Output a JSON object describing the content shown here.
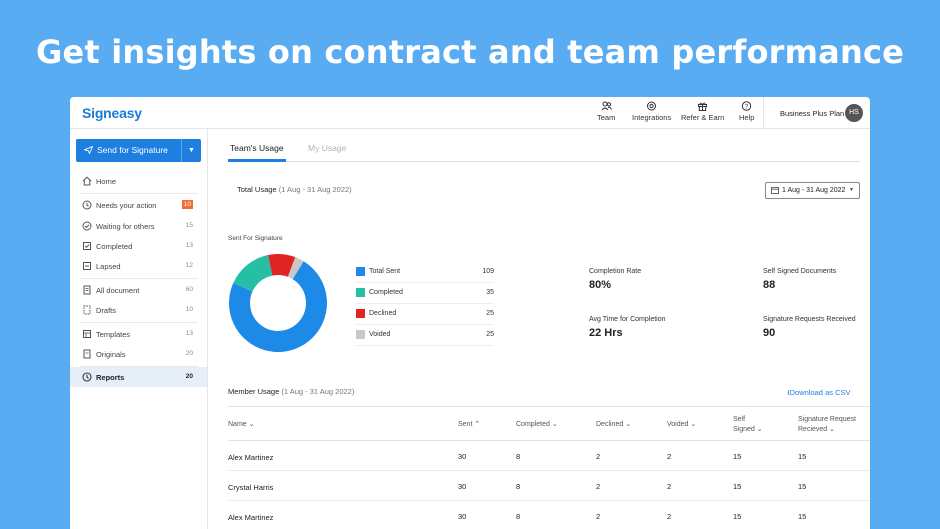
{
  "headline": "Get insights on contract and team performance",
  "app": {
    "logo": "Signeasy"
  },
  "topnav": [
    {
      "label": "Team",
      "icon": "team-icon"
    },
    {
      "label": "Integrations",
      "icon": "integrations-icon"
    },
    {
      "label": "Refer & Earn",
      "icon": "gift-icon"
    },
    {
      "label": "Help",
      "icon": "help-icon"
    }
  ],
  "plan": {
    "label": "Business Plus Plan",
    "avatar": "HS"
  },
  "sidebar": {
    "send_label": "Send for Signature",
    "items": [
      {
        "label": "Home",
        "count": "",
        "icon": "home-icon"
      },
      {
        "label": "Needs your action",
        "count": "10",
        "icon": "needs-action-icon"
      },
      {
        "label": "Waiting for others",
        "count": "15",
        "icon": "waiting-icon"
      },
      {
        "label": "Completed",
        "count": "13",
        "icon": "completed-icon"
      },
      {
        "label": "Lapsed",
        "count": "12",
        "icon": "lapsed-icon"
      },
      {
        "label": "All document",
        "count": "60",
        "icon": "all-documents-icon"
      },
      {
        "label": "Drafts",
        "count": "10",
        "icon": "drafts-icon"
      },
      {
        "label": "Templates",
        "count": "13",
        "icon": "templates-icon"
      },
      {
        "label": "Originals",
        "count": "20",
        "icon": "originals-icon"
      },
      {
        "label": "Reports",
        "count": "20",
        "icon": "reports-icon"
      }
    ]
  },
  "tabs": [
    {
      "label": "Team's Usage"
    },
    {
      "label": "My Usage"
    }
  ],
  "total_usage": {
    "title": "Total Usage",
    "range": "(1 Aug - 31 Aug 2022)"
  },
  "date_filter": {
    "label": "1 Aug - 31 Aug 2022"
  },
  "sent_for_signature_label": "Sent For Signature",
  "chart_data": {
    "type": "pie",
    "title": "Sent For Signature",
    "categories": [
      "Total Sent",
      "Completed",
      "Declined",
      "Voided"
    ],
    "values": [
      109,
      35,
      25,
      25
    ],
    "colors": [
      "#1e8ae8",
      "#26bea5",
      "#e02424",
      "#c8c8c8"
    ]
  },
  "chart_slices_drawn": [
    0.73,
    0.15,
    0.09,
    0.03
  ],
  "stats": [
    {
      "label": "Completion Rate",
      "value": "80%"
    },
    {
      "label": "Self Signed Documents",
      "value": "88"
    },
    {
      "label": "Avg Time for Completion",
      "value": "22 Hrs"
    },
    {
      "label": "Signature Requests Received",
      "value": "90"
    }
  ],
  "member_usage": {
    "title": "Member Usage",
    "range": "(1 Aug - 31 Aug 2022)",
    "download": "Download as CSV"
  },
  "table": {
    "headers": [
      "Name",
      "Sent",
      "Completed",
      "Declined",
      "Voided",
      "Self Signed",
      "Signature Request Recieved"
    ],
    "header_lines": [
      [
        "Self",
        "Signed"
      ],
      [
        "Signature Request",
        "Recieved"
      ]
    ],
    "rows": [
      [
        "Alex Martinez",
        "30",
        "8",
        "2",
        "2",
        "15",
        "15"
      ],
      [
        "Crystal Harris",
        "30",
        "8",
        "2",
        "2",
        "15",
        "15"
      ],
      [
        "Alex Martinez",
        "30",
        "8",
        "2",
        "2",
        "15",
        "15"
      ]
    ]
  }
}
